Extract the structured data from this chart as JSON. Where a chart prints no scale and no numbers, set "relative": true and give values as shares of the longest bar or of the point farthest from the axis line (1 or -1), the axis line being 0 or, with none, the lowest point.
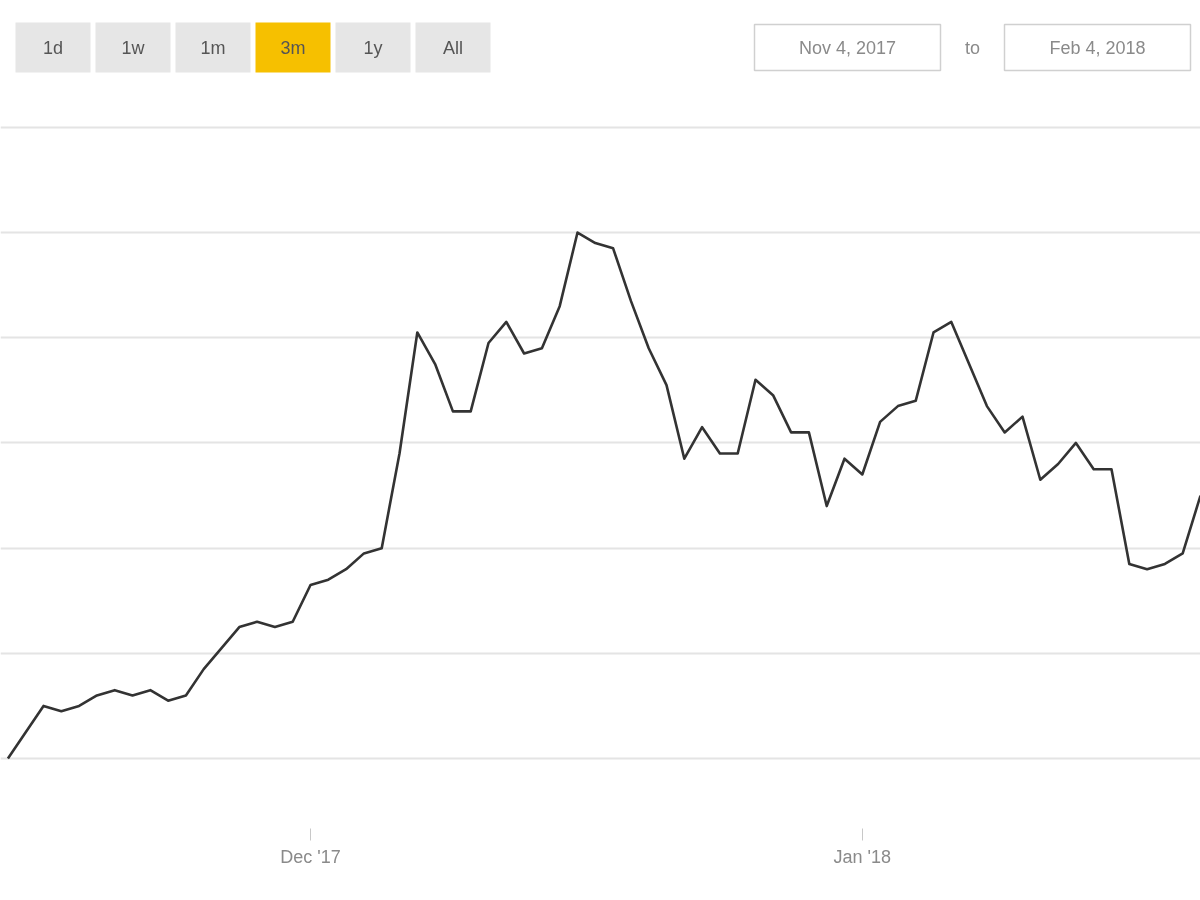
{
  "chart_data": [
    {
      "type": "other",
      "categories": [
        "1d",
        "1w",
        "1m",
        "3m",
        "1y",
        "All"
      ],
      "colors": [
        "#e6e6e6",
        "#e6e6e6",
        "#e6e6e6",
        "#f6c000",
        "#e6e6e6",
        "#e6e6e6"
      ],
      "annotations": [
        "Nov 4, 2017",
        "to",
        "Feb 4, 2018"
      ]
    },
    {
      "type": "line",
      "relative": true,
      "x": [
        "2017-11-14",
        "2017-11-15",
        "2017-11-16",
        "2017-11-17",
        "2017-11-18",
        "2017-11-19",
        "2017-11-20",
        "2017-11-21",
        "2017-11-22",
        "2017-11-23",
        "2017-11-24",
        "2017-11-25",
        "2017-11-26",
        "2017-11-27",
        "2017-11-28",
        "2017-11-29",
        "2017-11-30",
        "2017-12-01",
        "2017-12-02",
        "2017-12-03",
        "2017-12-04",
        "2017-12-05",
        "2017-12-06",
        "2017-12-07",
        "2017-12-08",
        "2017-12-09",
        "2017-12-10",
        "2017-12-11",
        "2017-12-12",
        "2017-12-13",
        "2017-12-14",
        "2017-12-15",
        "2017-12-16",
        "2017-12-17",
        "2017-12-18",
        "2017-12-19",
        "2017-12-20",
        "2017-12-21",
        "2017-12-22",
        "2017-12-23",
        "2017-12-24",
        "2017-12-25",
        "2017-12-26",
        "2017-12-27",
        "2017-12-28",
        "2017-12-29",
        "2017-12-30",
        "2017-12-31",
        "2018-01-01",
        "2018-01-02",
        "2018-01-03",
        "2018-01-04",
        "2018-01-05",
        "2018-01-06",
        "2018-01-07",
        "2018-01-08",
        "2018-01-09",
        "2018-01-10",
        "2018-01-11",
        "2018-01-12",
        "2018-01-13",
        "2018-01-14",
        "2018-01-15",
        "2018-01-16",
        "2018-01-17",
        "2018-01-18",
        "2018-01-19",
        "2018-01-20"
      ],
      "series": [
        {
          "color": "#333333",
          "values": [
            0,
            0.05,
            0.1,
            0.09,
            0.1,
            0.12,
            0.13,
            0.12,
            0.13,
            0.11,
            0.12,
            0.17,
            0.21,
            0.25,
            0.26,
            0.25,
            0.26,
            0.33,
            0.34,
            0.36,
            0.39,
            0.4,
            0.58,
            0.81,
            0.75,
            0.66,
            0.66,
            0.79,
            0.83,
            0.77,
            0.78,
            0.86,
            1,
            0.98,
            0.97,
            0.87,
            0.78,
            0.71,
            0.57,
            0.63,
            0.58,
            0.58,
            0.72,
            0.69,
            0.62,
            0.62,
            0.48,
            0.57,
            0.54,
            0.64,
            0.67,
            0.68,
            0.81,
            0.83,
            0.75,
            0.67,
            0.62,
            0.65,
            0.53,
            0.56,
            0.6,
            0.55,
            0.55,
            0.37,
            0.36,
            0.37,
            0.39,
            0.5
          ]
        }
      ],
      "xlim": [
        "2017-11-13T14:00",
        "2018-01-20"
      ],
      "xticks": [
        {
          "value": "2017-12-01",
          "label": "Dec '17"
        },
        {
          "value": "2018-01-01",
          "label": "Jan '18"
        }
      ],
      "grid": "y"
    }
  ]
}
